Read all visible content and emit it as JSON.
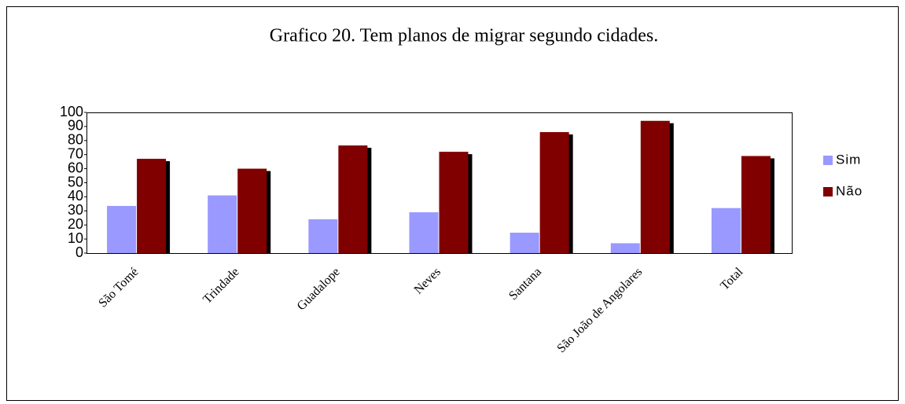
{
  "chart_data": {
    "type": "bar",
    "title": "Grafico 20. Tem planos de migrar segundo  cidades.",
    "categories": [
      "São Tomé",
      "Trindade",
      "Guadalope",
      "Neves",
      "Santana",
      "São João de Angolares",
      "Total"
    ],
    "series": [
      {
        "name": "Sim",
        "color": "#9999ff",
        "values": [
          33.5,
          41,
          24,
          29,
          14.5,
          7,
          32
        ]
      },
      {
        "name": "Não",
        "color": "#800000",
        "values": [
          67,
          60,
          76.5,
          72,
          86,
          94,
          69
        ]
      }
    ],
    "ylim": [
      0,
      100
    ],
    "yticks": [
      0,
      10,
      20,
      30,
      40,
      50,
      60,
      70,
      80,
      90,
      100
    ],
    "legend": "right"
  }
}
